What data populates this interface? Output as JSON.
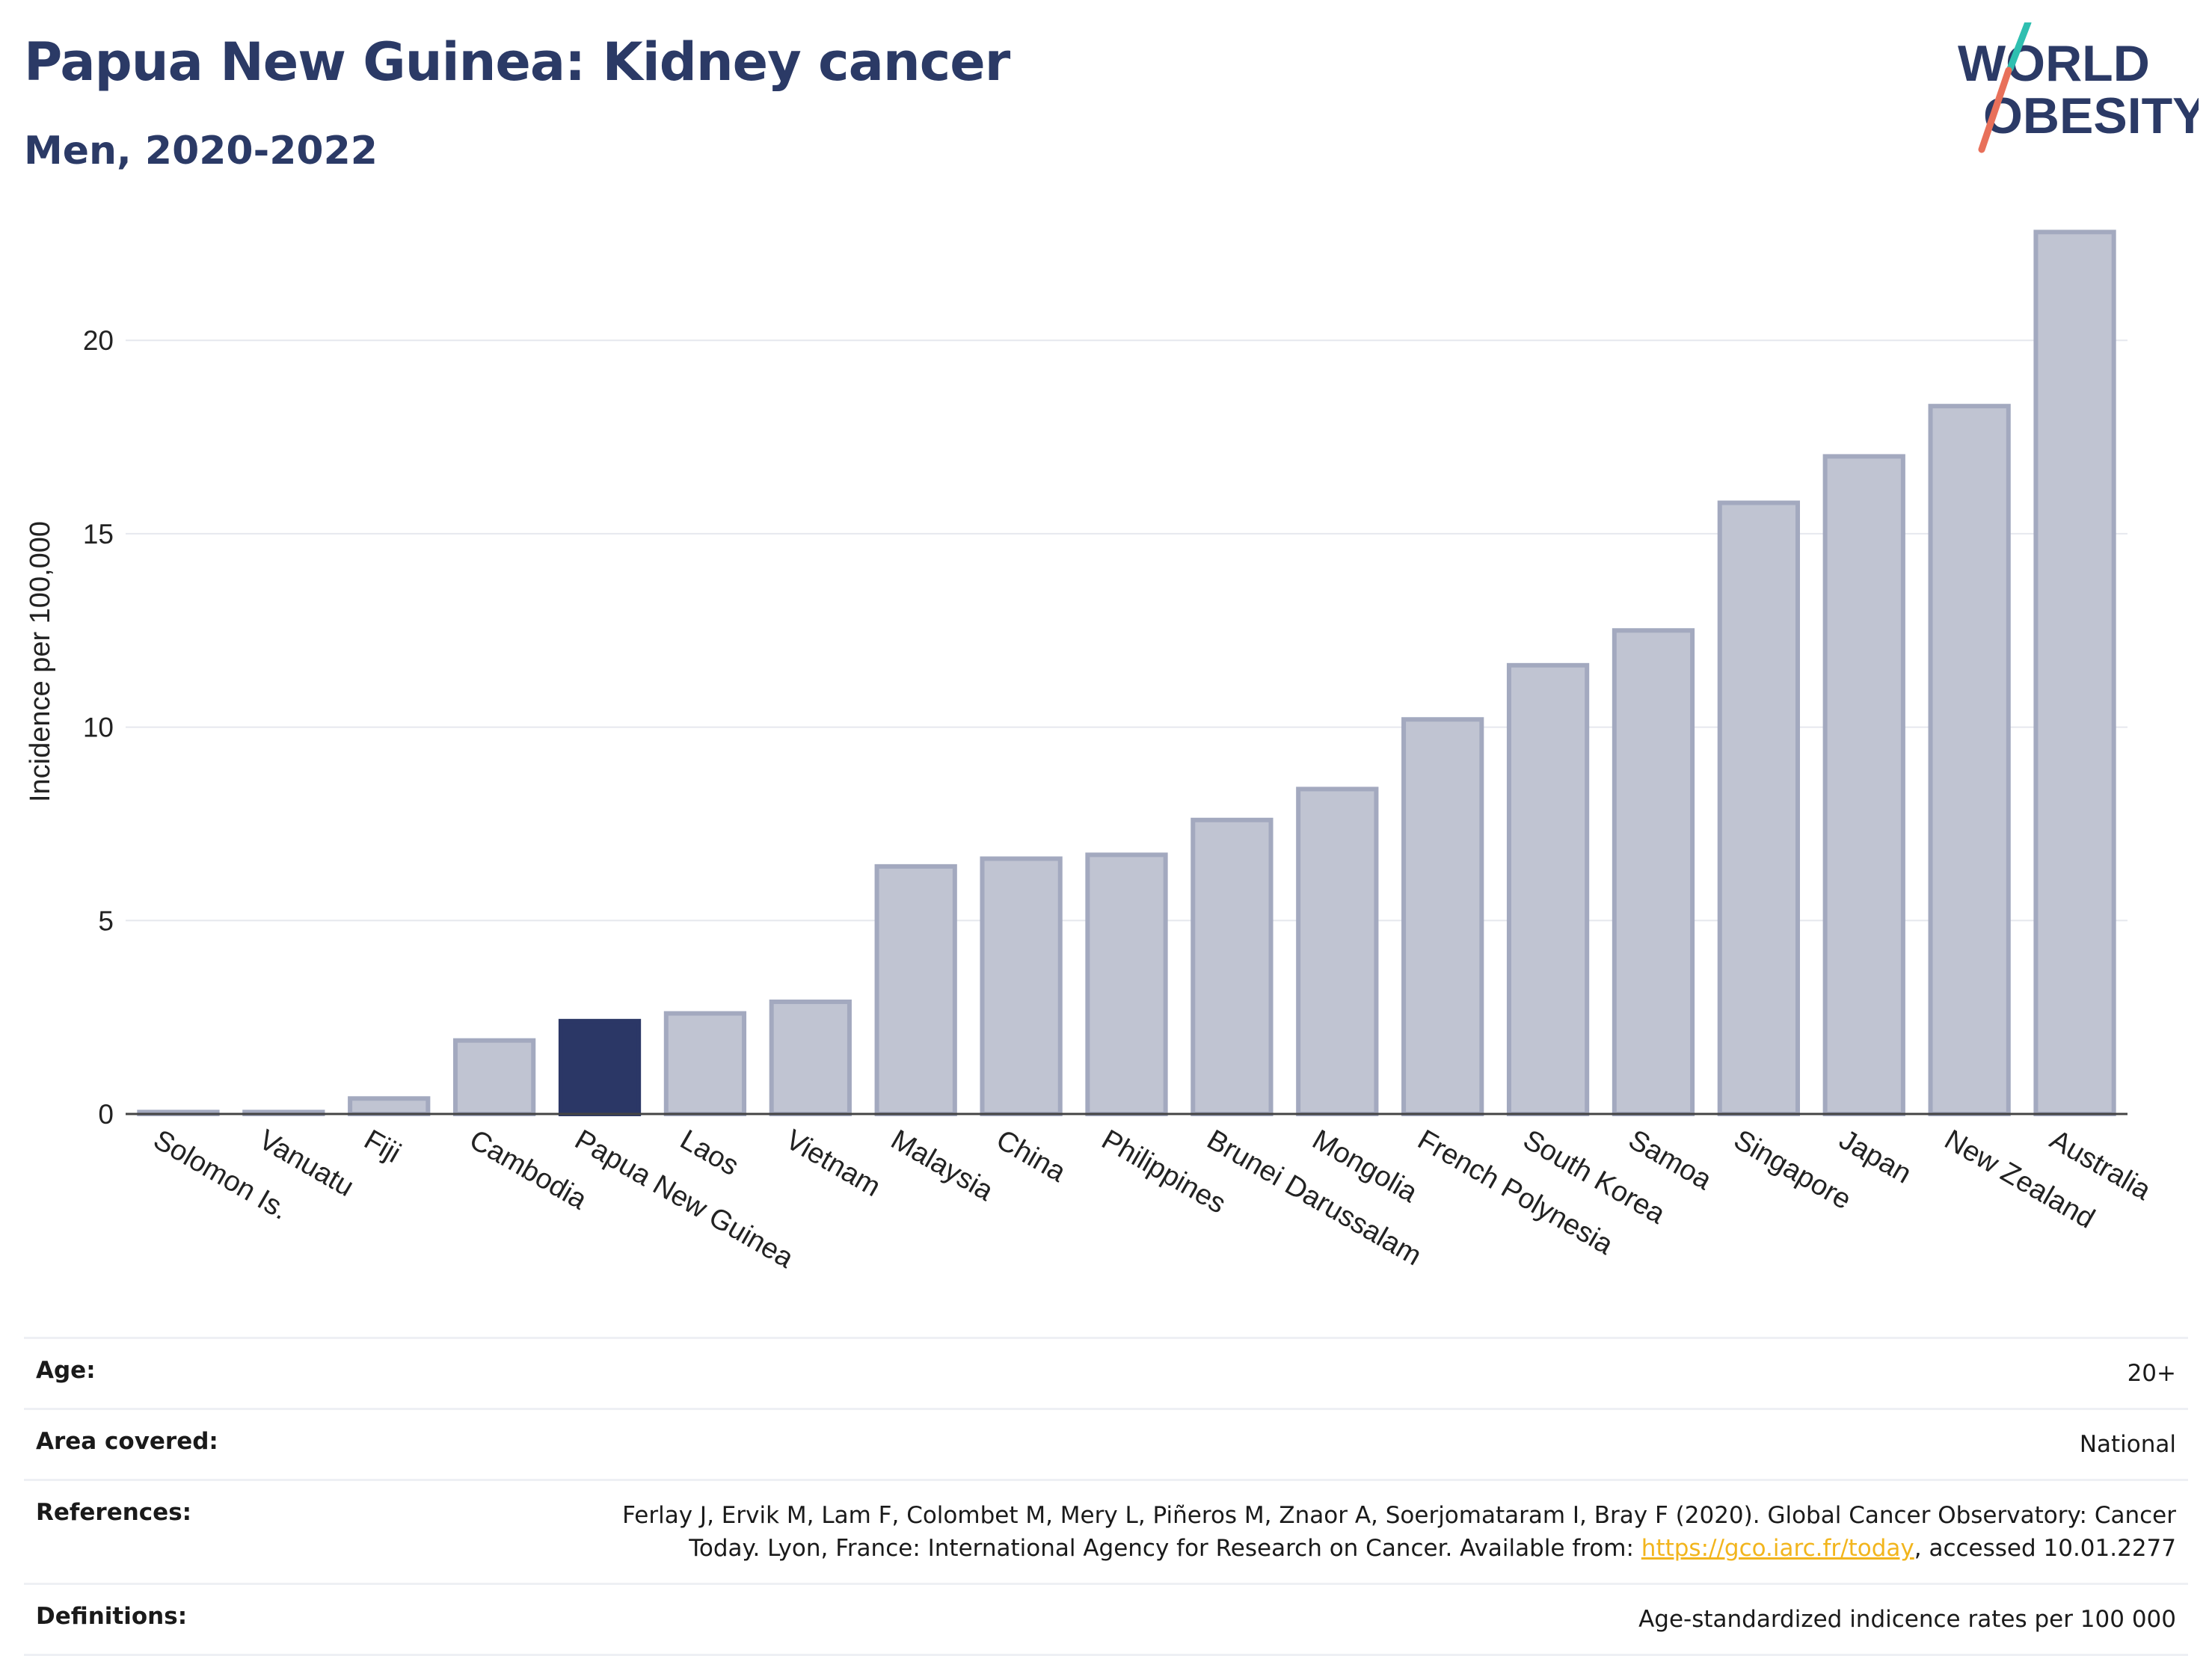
{
  "header": {
    "title": "Papua New Guinea: Kidney cancer",
    "subtitle": "Men, 2020-2022"
  },
  "logo": {
    "line1": "WORLD",
    "line2": "OBESITY"
  },
  "colors": {
    "bar": "#c0c4d2",
    "bar_stroke": "#a3a9bf",
    "highlight": "#2b3766",
    "text": "#2b3a66",
    "link": "#f2b51d"
  },
  "chart_data": {
    "type": "bar",
    "categories": [
      "Solomon Is.",
      "Vanuatu",
      "Fiji",
      "Cambodia",
      "Papua New Guinea",
      "Laos",
      "Vietnam",
      "Malaysia",
      "China",
      "Philippines",
      "Brunei Darussalam",
      "Mongolia",
      "French Polynesia",
      "South Korea",
      "Samoa",
      "Singapore",
      "Japan",
      "New Zealand",
      "Australia"
    ],
    "values": [
      0.05,
      0.05,
      0.4,
      1.9,
      2.4,
      2.6,
      2.9,
      6.4,
      6.6,
      6.7,
      7.6,
      8.4,
      10.2,
      11.6,
      12.5,
      15.8,
      17.0,
      18.3,
      22.8
    ],
    "highlight": "Papua New Guinea",
    "ylabel": "Incidence per 100,000",
    "xlabel": "",
    "ylim": [
      0,
      23
    ],
    "yticks": [
      0,
      5,
      10,
      15,
      20
    ],
    "grid": true
  },
  "meta": {
    "age_label": "Age:",
    "age_value": "20+",
    "area_label": "Area covered:",
    "area_value": "National",
    "references_label": "References:",
    "references_text_1": "Ferlay J, Ervik M, Lam F, Colombet M, Mery L, Piñeros M, Znaor A, Soerjomataram I, Bray F (2020). Global Cancer Observatory: Cancer Today. Lyon, France: International Agency for Research on Cancer. Available from: ",
    "references_link": "https://gco.iarc.fr/today",
    "references_text_2": ", accessed 10.01.2277",
    "definitions_label": "Definitions:",
    "definitions_value": "Age-standardized indicence rates per 100 000"
  }
}
